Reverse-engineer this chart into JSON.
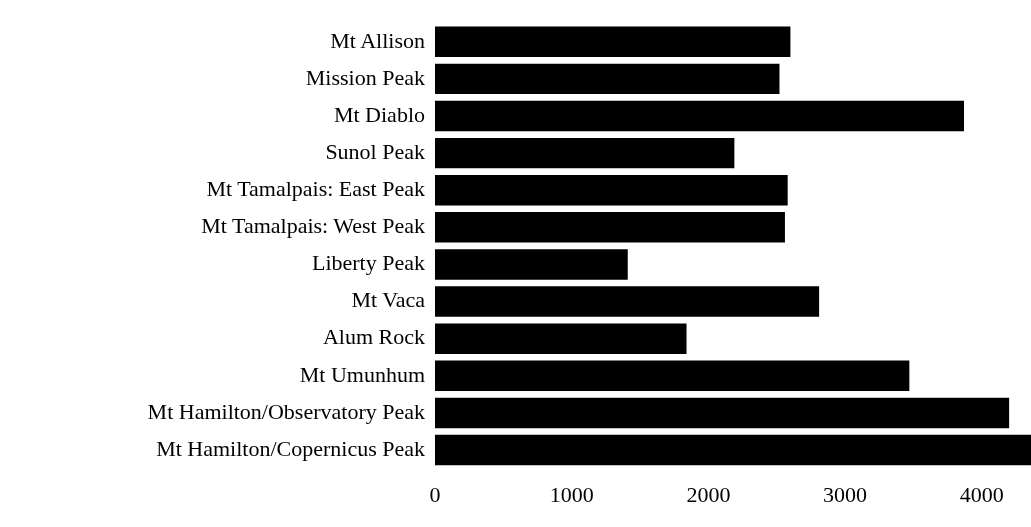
{
  "chart_data": {
    "type": "bar",
    "orientation": "horizontal",
    "categories": [
      "Mt Allison",
      "Mission Peak",
      "Mt Diablo",
      "Sunol Peak",
      "Mt Tamalpais: East Peak",
      "Mt Tamalpais: West Peak",
      "Liberty Peak",
      "Mt Vaca",
      "Alum Rock",
      "Mt Umunhum",
      "Mt Hamilton/Observatory Peak",
      "Mt Hamilton/Copernicus Peak"
    ],
    "values": [
      2600,
      2520,
      3870,
      2190,
      2580,
      2560,
      1410,
      2810,
      1840,
      3470,
      4200,
      4360
    ],
    "color": "#000000",
    "xlim": [
      0,
      4360
    ],
    "xticks": [
      0,
      1000,
      2000,
      3000,
      4000
    ],
    "grid": false,
    "legend": false
  }
}
